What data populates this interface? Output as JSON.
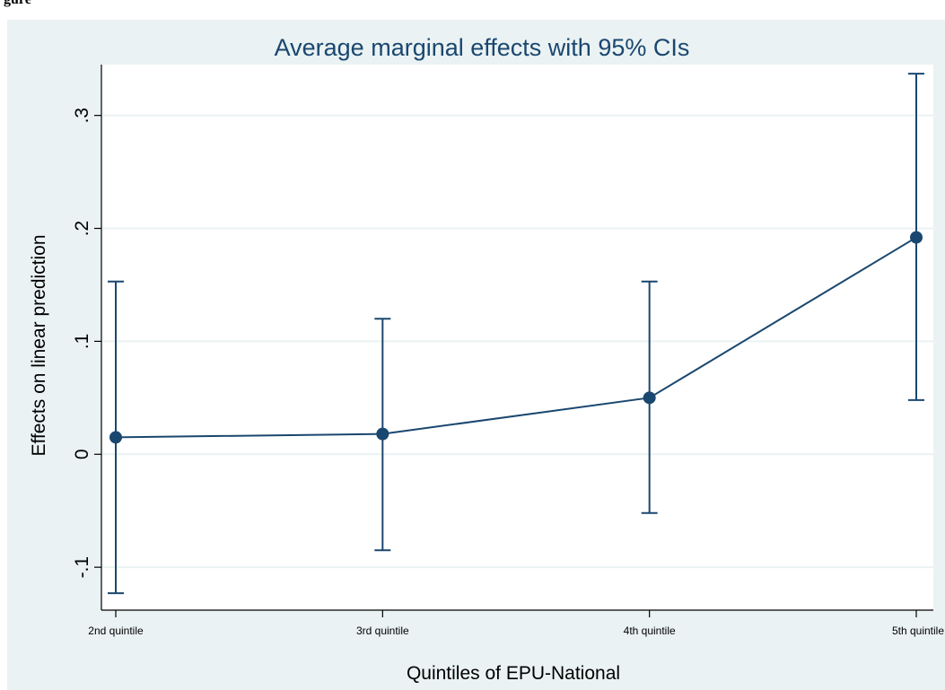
{
  "top_caption": "gure",
  "chart_data": {
    "type": "line",
    "title": "Average marginal effects with 95% CIs",
    "xlabel": "Quintiles of EPU-National",
    "ylabel": "Effects on linear prediction",
    "categories": [
      "2nd quintile",
      "3rd quintile",
      "4th quintile",
      "5th quintile"
    ],
    "series": [
      {
        "values": [
          0.015,
          0.018,
          0.05,
          0.192
        ],
        "ci_lower": [
          -0.123,
          -0.085,
          -0.052,
          0.048
        ],
        "ci_upper": [
          0.153,
          0.12,
          0.153,
          0.337
        ]
      }
    ],
    "ylim": [
      -0.138,
      0.345
    ],
    "yticks": [
      -0.1,
      0,
      0.1,
      0.2,
      0.3
    ],
    "ytick_labels": [
      "-.1",
      "0",
      ".1",
      ".2",
      ".3"
    ],
    "grid": true,
    "colors": {
      "series": "#1a476f",
      "grid": "#eaf2f3",
      "plot_background": "#ffffff",
      "graph_background": "#eaf2f3"
    }
  }
}
